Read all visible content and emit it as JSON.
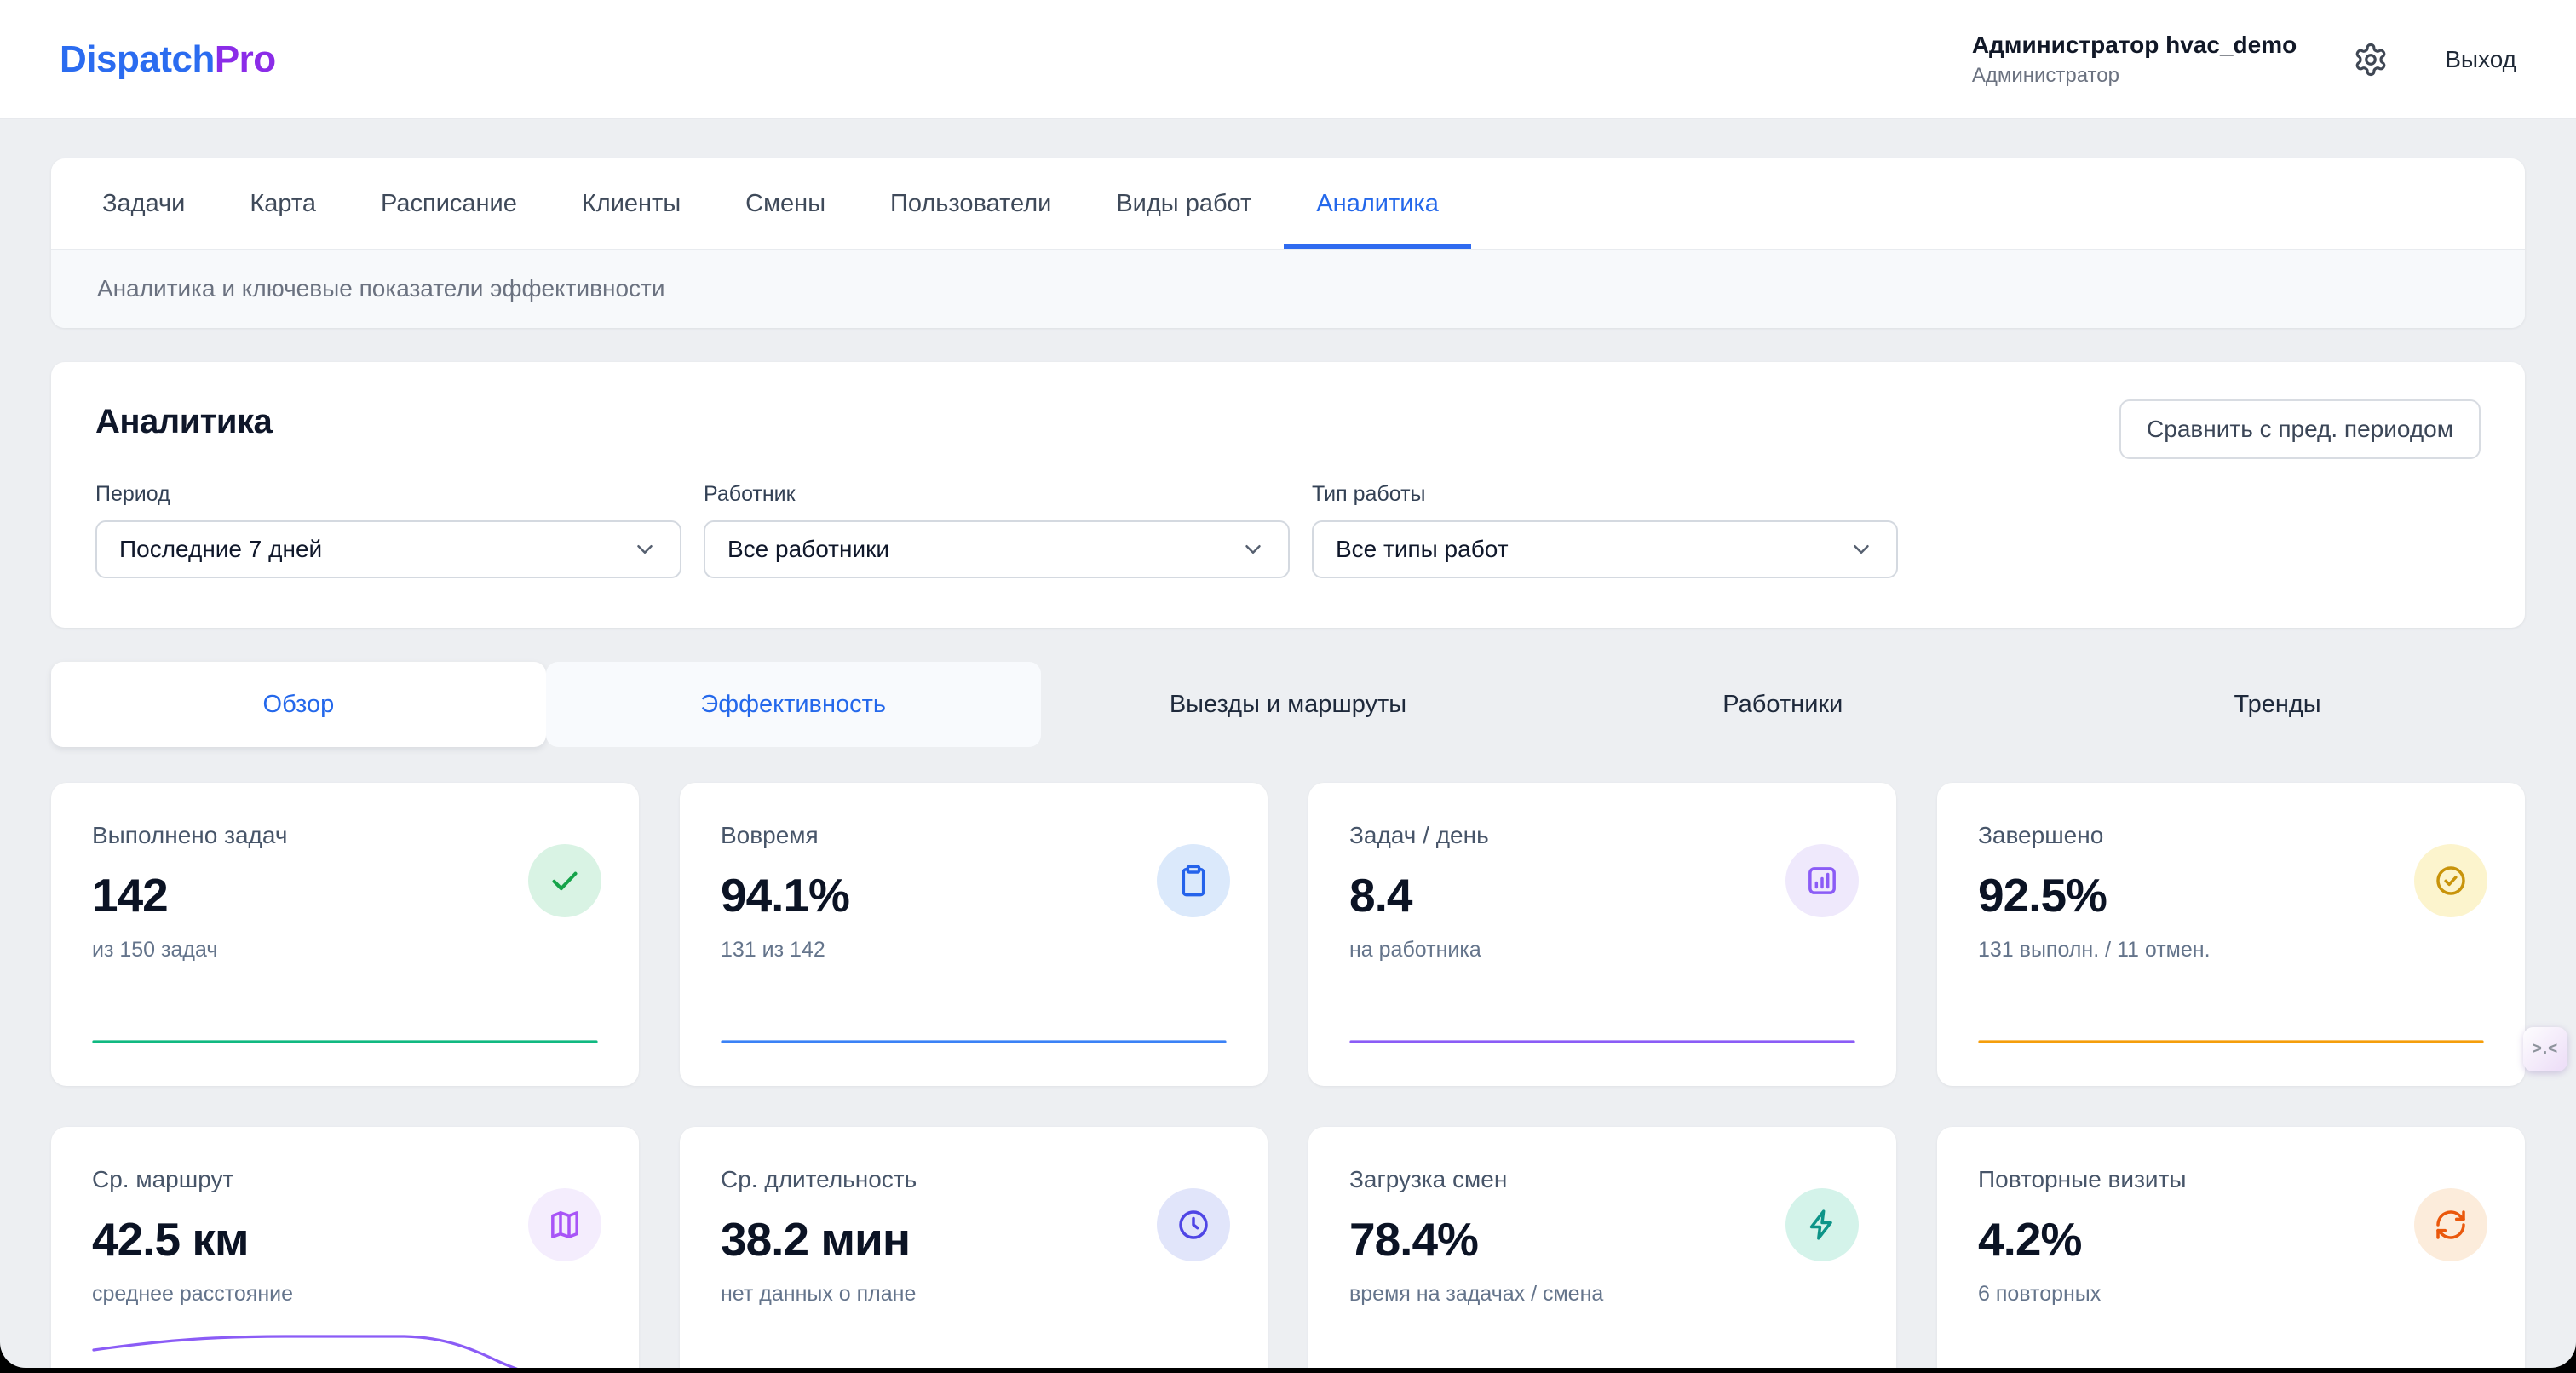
{
  "header": {
    "brand_part1": "Dispatch",
    "brand_part2": "Pro",
    "user": {
      "name": "Администратор hvac_demo",
      "role": "Администратор"
    },
    "logout_label": "Выход"
  },
  "nav": {
    "tabs": [
      "Задачи",
      "Карта",
      "Расписание",
      "Клиенты",
      "Смены",
      "Пользователи",
      "Виды работ",
      "Аналитика"
    ],
    "active_tab": "Аналитика",
    "subtitle": "Аналитика и ключевые показатели эффективности"
  },
  "panel": {
    "title": "Аналитика",
    "compare_button": "Сравнить с пред. периодом",
    "filters": [
      {
        "label": "Период",
        "value": "Последние 7 дней"
      },
      {
        "label": "Работник",
        "value": "Все работники"
      },
      {
        "label": "Тип работы",
        "value": "Все типы работ"
      }
    ]
  },
  "sub_tabs": {
    "labels": [
      "Обзор",
      "Эффективность",
      "Выезды и маршруты",
      "Работники",
      "Тренды"
    ],
    "active": "Обзор"
  },
  "kpi_cards": [
    {
      "title": "Выполнено задач",
      "value": "142",
      "sub": "из 150 задач",
      "icon": "check-icon",
      "accent": "#16a34a",
      "icon_bg": "#d9f3e4",
      "spark": "flat",
      "spark_color": "#10b981"
    },
    {
      "title": "Вовремя",
      "value": "94.1%",
      "sub": "131 из 142",
      "icon": "clipboard-icon",
      "accent": "#2563eb",
      "icon_bg": "#dbe9fb",
      "spark": "flat",
      "spark_color": "#3b82f6"
    },
    {
      "title": "Задач / день",
      "value": "8.4",
      "sub": "на работника",
      "icon": "bar-chart-icon",
      "accent": "#8b5cf6",
      "icon_bg": "#efe9fc",
      "spark": "flat",
      "spark_color": "#8b5cf6"
    },
    {
      "title": "Завершено",
      "value": "92.5%",
      "sub": "131 выполн. / 11 отмен.",
      "icon": "circle-check-icon",
      "accent": "#c8930a",
      "icon_bg": "#fcf4cd",
      "spark": "flat",
      "spark_color": "#f59e0b"
    },
    {
      "title": "Ср. маршрут",
      "value": "42.5 км",
      "sub": "среднее расстояние",
      "icon": "map-icon",
      "accent": "#a855f7",
      "icon_bg": "#f4edfd",
      "spark": "curve",
      "spark_color": "#8b5cf6"
    },
    {
      "title": "Ср. длительность",
      "value": "38.2 мин",
      "sub": "нет данных о плане",
      "icon": "clock-icon",
      "accent": "#4f46e5",
      "icon_bg": "#e1e5fa",
      "spark": null,
      "spark_color": null
    },
    {
      "title": "Загрузка смен",
      "value": "78.4%",
      "sub": "время на задачах / смена",
      "icon": "zap-icon",
      "accent": "#0d9488",
      "icon_bg": "#d4f3ea",
      "spark": null,
      "spark_color": null
    },
    {
      "title": "Повторные визиты",
      "value": "4.2%",
      "sub": "6 повторных",
      "icon": "refresh-icon",
      "accent": "#ea580c",
      "icon_bg": "#fcecdb",
      "spark": null,
      "spark_color": null
    }
  ],
  "floating_widget": {
    "glyph": ">.<"
  }
}
